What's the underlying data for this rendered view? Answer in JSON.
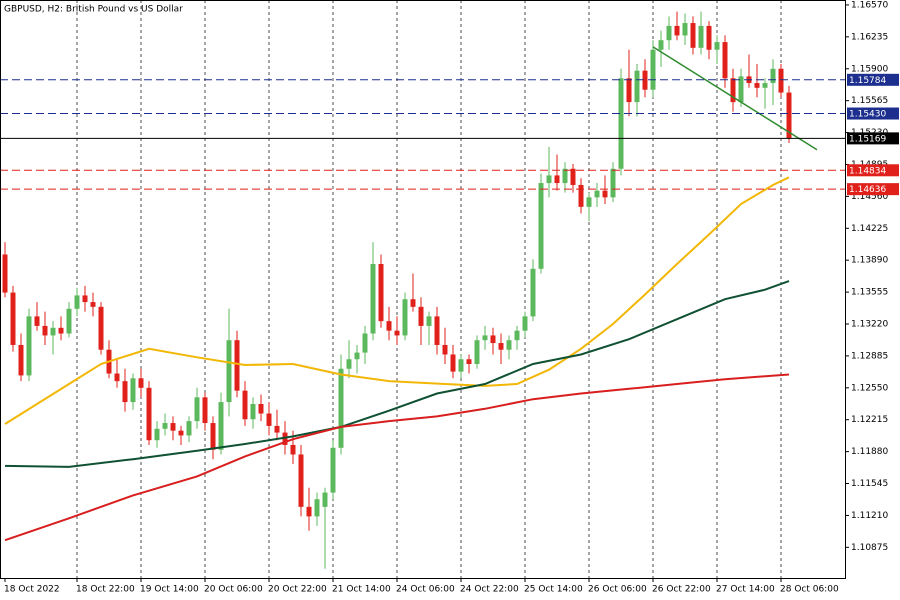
{
  "chart_data": {
    "type": "candlestick",
    "title": "GBPUSD, H2:  British Pound vs US Dollar",
    "up_color": "#5cb85c",
    "down_color": "#e0201b",
    "open": [
      1.1395,
      1.1355,
      1.13,
      1.1268,
      1.133,
      1.132,
      1.131,
      1.1318,
      1.1312,
      1.1338,
      1.1352,
      1.1345,
      1.134,
      1.1295,
      1.127,
      1.1262,
      1.124,
      1.1265,
      1.1255,
      1.12,
      1.1212,
      1.1218,
      1.121,
      1.1205,
      1.122,
      1.1245,
      1.1218,
      1.119,
      1.124,
      1.1305,
      1.1252,
      1.1222,
      1.1238,
      1.1228,
      1.1215,
      1.1208,
      1.1195,
      1.1185,
      1.113,
      1.112,
      1.113,
      1.1145,
      1.1192,
      1.1275,
      1.1285,
      1.1292,
      1.1312,
      1.1385,
      1.1325,
      1.1315,
      1.131,
      1.1348,
      1.134,
      1.132,
      1.133,
      1.13,
      1.129,
      1.1272,
      1.1285,
      1.128,
      1.1305,
      1.131,
      1.1302,
      1.1295,
      1.1305,
      1.1315,
      1.133,
      1.138,
      1.147,
      1.1478,
      1.147,
      1.1485,
      1.1468,
      1.1445,
      1.1455,
      1.1462,
      1.1455,
      1.1485,
      1.158,
      1.1555,
      1.1588,
      1.1568,
      1.161,
      1.162,
      1.1635,
      1.1625,
      1.1638,
      1.1612,
      1.1635,
      1.161,
      1.1618,
      1.158,
      1.1555,
      1.1582,
      1.1575,
      1.157,
      1.1575,
      1.159,
      1.1565
    ],
    "high": [
      1.1408,
      1.1362,
      1.1312,
      1.1338,
      1.1345,
      1.1335,
      1.1325,
      1.133,
      1.1345,
      1.136,
      1.1362,
      1.1355,
      1.1345,
      1.1305,
      1.1285,
      1.1275,
      1.127,
      1.1275,
      1.1262,
      1.122,
      1.1228,
      1.1225,
      1.1215,
      1.1225,
      1.1255,
      1.125,
      1.1225,
      1.125,
      1.1338,
      1.1315,
      1.1262,
      1.1245,
      1.1248,
      1.124,
      1.1232,
      1.122,
      1.121,
      1.1195,
      1.115,
      1.1145,
      1.115,
      1.12,
      1.129,
      1.1305,
      1.13,
      1.132,
      1.1408,
      1.1395,
      1.134,
      1.133,
      1.1355,
      1.1375,
      1.135,
      1.1335,
      1.134,
      1.1318,
      1.13,
      1.129,
      1.129,
      1.131,
      1.132,
      1.1318,
      1.1312,
      1.131,
      1.132,
      1.1335,
      1.139,
      1.148,
      1.1508,
      1.15,
      1.1492,
      1.149,
      1.1475,
      1.146,
      1.147,
      1.1478,
      1.1492,
      1.159,
      1.161,
      1.1595,
      1.16,
      1.162,
      1.163,
      1.1645,
      1.165,
      1.1648,
      1.1645,
      1.165,
      1.164,
      1.1625,
      1.1625,
      1.159,
      1.159,
      1.1605,
      1.1595,
      1.158,
      1.16,
      1.1595,
      1.1572
    ],
    "low": [
      1.135,
      1.1293,
      1.1262,
      1.1262,
      1.1315,
      1.13,
      1.129,
      1.1305,
      1.1308,
      1.133,
      1.1335,
      1.133,
      1.129,
      1.1265,
      1.1255,
      1.123,
      1.1232,
      1.1245,
      1.1195,
      1.1192,
      1.1205,
      1.12,
      1.1195,
      1.1198,
      1.1212,
      1.121,
      1.118,
      1.1185,
      1.1225,
      1.1245,
      1.1215,
      1.1212,
      1.122,
      1.1205,
      1.12,
      1.1185,
      1.1175,
      1.112,
      1.1105,
      1.111,
      1.1065,
      1.1138,
      1.1185,
      1.1265,
      1.127,
      1.128,
      1.1305,
      1.1318,
      1.1305,
      1.13,
      1.1305,
      1.1335,
      1.13,
      1.13,
      1.129,
      1.128,
      1.1265,
      1.1265,
      1.127,
      1.1275,
      1.1295,
      1.129,
      1.128,
      1.1285,
      1.1295,
      1.1308,
      1.1325,
      1.1375,
      1.1455,
      1.1462,
      1.146,
      1.146,
      1.1438,
      1.143,
      1.1445,
      1.1448,
      1.145,
      1.1478,
      1.154,
      1.154,
      1.156,
      1.156,
      1.1592,
      1.161,
      1.162,
      1.1615,
      1.1605,
      1.1605,
      1.16,
      1.1595,
      1.157,
      1.1545,
      1.155,
      1.157,
      1.156,
      1.1548,
      1.1552,
      1.156,
      1.1512
    ],
    "close": [
      1.1355,
      1.13,
      1.1268,
      1.133,
      1.132,
      1.131,
      1.1318,
      1.1312,
      1.1338,
      1.1352,
      1.1345,
      1.134,
      1.1295,
      1.127,
      1.1262,
      1.124,
      1.1265,
      1.1255,
      1.12,
      1.1212,
      1.1218,
      1.121,
      1.1205,
      1.122,
      1.1245,
      1.1218,
      1.119,
      1.124,
      1.1305,
      1.1252,
      1.1222,
      1.1238,
      1.1228,
      1.1215,
      1.1208,
      1.1195,
      1.1185,
      1.113,
      1.112,
      1.1138,
      1.1145,
      1.1192,
      1.1275,
      1.1285,
      1.1292,
      1.1312,
      1.1385,
      1.1325,
      1.1315,
      1.131,
      1.1348,
      1.134,
      1.132,
      1.133,
      1.13,
      1.129,
      1.1272,
      1.1285,
      1.128,
      1.1305,
      1.131,
      1.1302,
      1.1295,
      1.1305,
      1.1315,
      1.133,
      1.138,
      1.147,
      1.1478,
      1.147,
      1.1485,
      1.1468,
      1.1445,
      1.1455,
      1.1462,
      1.1455,
      1.1485,
      1.158,
      1.1555,
      1.1588,
      1.1568,
      1.161,
      1.162,
      1.1635,
      1.1625,
      1.1638,
      1.1612,
      1.1635,
      1.161,
      1.1618,
      1.158,
      1.1555,
      1.1582,
      1.1575,
      1.157,
      1.1575,
      1.159,
      1.1565,
      1.1517
    ],
    "series": [
      {
        "color": "#f2b705",
        "x": [
          0,
          8,
          12,
          18,
          24,
          30,
          36,
          42,
          48,
          55,
          60,
          64,
          68,
          72,
          76,
          80,
          84,
          88,
          92,
          96,
          98
        ],
        "values": [
          1.1217,
          1.1259,
          1.128,
          1.1296,
          1.1287,
          1.1279,
          1.128,
          1.1269,
          1.1262,
          1.1259,
          1.1257,
          1.1259,
          1.1274,
          1.1296,
          1.1322,
          1.1353,
          1.1385,
          1.1416,
          1.1448,
          1.1468,
          1.1476
        ]
      },
      {
        "color": "#0f5132",
        "x": [
          0,
          8,
          16,
          24,
          30,
          36,
          42,
          48,
          54,
          60,
          66,
          72,
          78,
          84,
          90,
          95,
          98
        ],
        "values": [
          1.1173,
          1.1172,
          1.118,
          1.1189,
          1.1196,
          1.1204,
          1.1214,
          1.1231,
          1.1249,
          1.1259,
          1.128,
          1.129,
          1.1306,
          1.1327,
          1.1348,
          1.1358,
          1.1367
        ]
      },
      {
        "color": "#d81e1e",
        "x": [
          0,
          8,
          16,
          24,
          30,
          36,
          42,
          48,
          54,
          60,
          66,
          72,
          78,
          84,
          90,
          98
        ],
        "values": [
          1.1095,
          1.1118,
          1.1142,
          1.1162,
          1.1183,
          1.1201,
          1.1214,
          1.122,
          1.1225,
          1.1233,
          1.1243,
          1.1249,
          1.1254,
          1.1259,
          1.1264,
          1.1269
        ]
      },
      {
        "color": "#2e8b2e",
        "x": [
          81,
          101.5
        ],
        "values": [
          1.1613,
          1.1505
        ]
      }
    ],
    "levels": [
      {
        "value": 1.15784,
        "color": "#1c2f8f",
        "style": "dashed"
      },
      {
        "value": 1.1543,
        "label": "1.15430",
        "color": "#1c2f8f",
        "style": "dashed"
      },
      {
        "value": 1.15169,
        "color": "#000000",
        "style": "solid"
      },
      {
        "value": 1.14834,
        "color": "#e0201b",
        "style": "dashed"
      },
      {
        "value": 1.14636,
        "color": "#e0201b",
        "style": "dashed"
      }
    ],
    "xlim": [
      -0.625,
      105
    ],
    "xticks": [
      {
        "value": 0,
        "label": "18 Oct 2022"
      },
      {
        "value": 9,
        "label": "18 Oct 22:00"
      },
      {
        "value": 17,
        "label": "19 Oct 14:00"
      },
      {
        "value": 25,
        "label": "20 Oct 06:00"
      },
      {
        "value": 33,
        "label": "20 Oct 22:00"
      },
      {
        "value": 41,
        "label": "21 Oct 14:00"
      },
      {
        "value": 49,
        "label": "24 Oct 06:00"
      },
      {
        "value": 57,
        "label": "24 Oct 22:00"
      },
      {
        "value": 65,
        "label": "25 Oct 14:00"
      },
      {
        "value": 73,
        "label": "26 Oct 06:00"
      },
      {
        "value": 81,
        "label": "26 Oct 22:00"
      },
      {
        "value": 89,
        "label": "27 Oct 14:00"
      },
      {
        "value": 97,
        "label": "28 Oct 06:00"
      }
    ],
    "xgrid": true,
    "ylim": [
      1.10553,
      1.16622
    ],
    "yticks": [
      {
        "value": 1.1657,
        "label": "1.16570"
      },
      1.16235,
      {
        "value": 1.159,
        "label": "1.15900"
      },
      1.15565,
      {
        "value": 1.1523,
        "label": "1.15230"
      },
      1.14895,
      {
        "value": 1.1456,
        "label": "1.14560"
      },
      1.14225,
      {
        "value": 1.1389,
        "label": "1.13890"
      },
      1.13555,
      {
        "value": 1.1322,
        "label": "1.13220"
      },
      1.12885,
      {
        "value": 1.1255,
        "label": "1.12550"
      },
      1.12215,
      {
        "value": 1.1188,
        "label": "1.11880"
      },
      1.11545,
      {
        "value": 1.1121,
        "label": "1.11210"
      },
      1.10875
    ],
    "ygrid": false
  }
}
